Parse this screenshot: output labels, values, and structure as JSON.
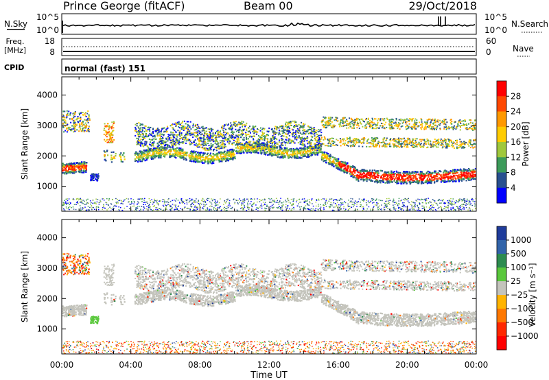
{
  "header": {
    "station": "Prince George (fitACF)",
    "beam": "Beam 00",
    "date": "29/Oct/2018"
  },
  "nsky_panel": {
    "left_label": "N.Sky",
    "left_ticks": [
      "10^5",
      "10^0"
    ],
    "right_label": "N.Search",
    "right_ticks": [
      "10^5",
      "10^0"
    ]
  },
  "freq_panel": {
    "left_label_line1": "Freq.",
    "left_label_line2": "[MHz]",
    "left_ticks": [
      "18",
      "8"
    ],
    "right_label": "Nave",
    "right_ticks": [
      "60",
      "0"
    ]
  },
  "cpid_panel": {
    "label": "CPID",
    "mode": "normal (fast) 151"
  },
  "chart_data": [
    {
      "type": "heatmap",
      "name": "power-panel",
      "ylabel": "Slant Range [km]",
      "ylim": [
        180,
        4600
      ],
      "yticks": [
        "1000",
        "2000",
        "3000",
        "4000"
      ],
      "colorbar_label": "Power [dB]",
      "colorbar_ticks": [
        "28",
        "24",
        "20",
        "16",
        "12",
        "8",
        "4"
      ],
      "colors": [
        "#ff0000",
        "#ff4800",
        "#ff9900",
        "#ffcc00",
        "#a0c83c",
        "#3c9b5a",
        "#285090",
        "#0000ff"
      ]
    },
    {
      "type": "heatmap",
      "name": "velocity-panel",
      "ylabel": "Slant Range [km]",
      "ylim": [
        180,
        4600
      ],
      "yticks": [
        "1000",
        "2000",
        "3000",
        "4000"
      ],
      "colorbar_label": "Velocity [m s⁻¹]",
      "colorbar_ticks": [
        "1000",
        "500",
        "100",
        "25",
        "−25",
        "−100",
        "−500",
        "−1000"
      ],
      "colors": [
        "#1f3c9b",
        "#3264aa",
        "#2d8c50",
        "#5ac83c",
        "#c4c4bc",
        "#ffb400",
        "#ff7800",
        "#ff2800",
        "#ff0000"
      ],
      "ground_scatter_color": "#c4c4bc"
    }
  ],
  "xaxis": {
    "label": "Time UT",
    "ticks": [
      "00:00",
      "04:00",
      "08:00",
      "12:00",
      "16:00",
      "20:00",
      "00:00"
    ]
  }
}
